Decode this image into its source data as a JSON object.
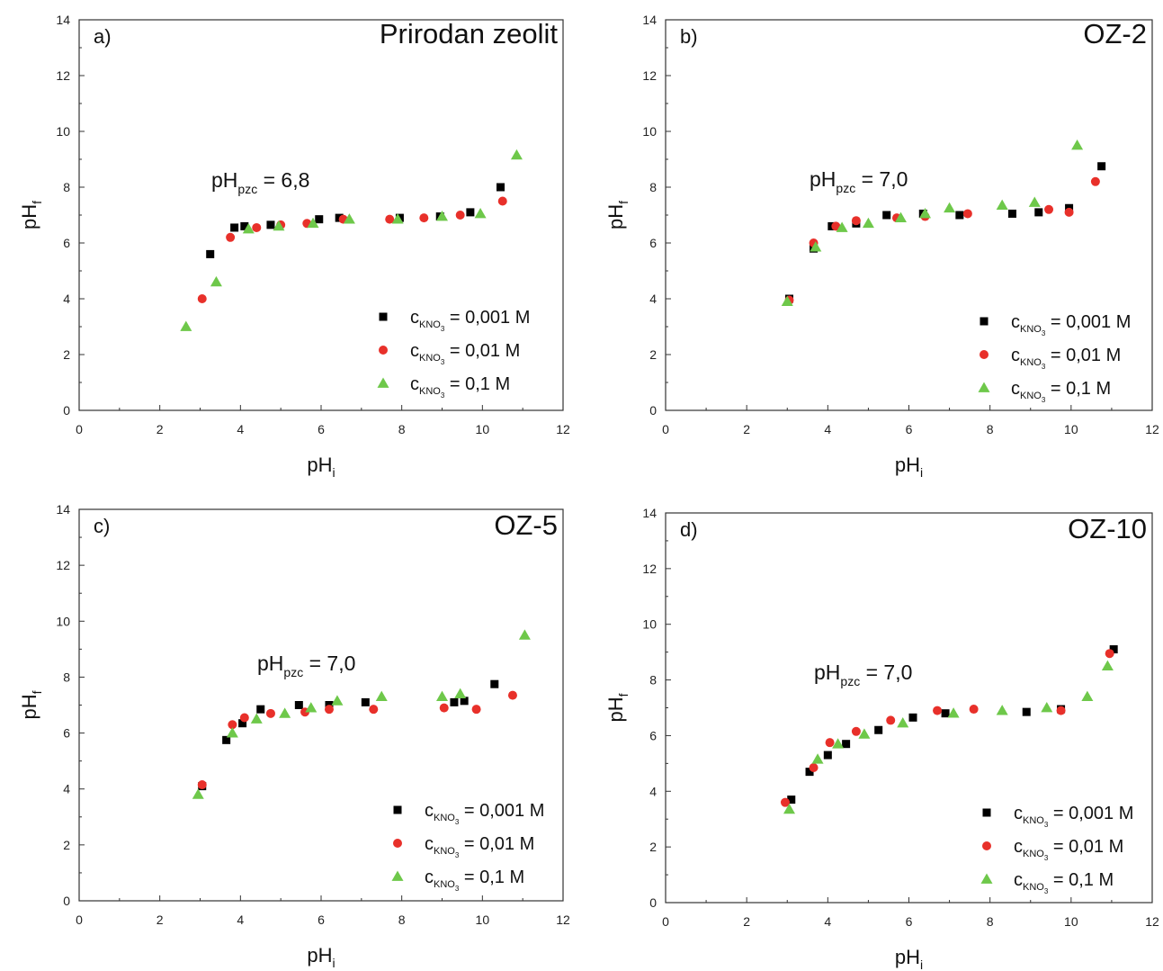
{
  "chart_data": [
    {
      "type": "scatter",
      "panel_label": "a)",
      "title": "Prirodan zeolit",
      "annotation": {
        "main": "pH",
        "sub": "pzc",
        "value": "= 6,8"
      },
      "xlabel": {
        "main": "pH",
        "sub": "i"
      },
      "ylabel": {
        "main": "pH",
        "sub": "f"
      },
      "xlim": [
        0,
        12
      ],
      "ylim": [
        0,
        14
      ],
      "xticks": [
        "0",
        "2",
        "4",
        "6",
        "8",
        "10",
        "12"
      ],
      "yticks": [
        "0",
        "2",
        "4",
        "6",
        "8",
        "10",
        "12",
        "14"
      ],
      "legend_position": "bottom-right",
      "series": [
        {
          "name": "c = 0,001 M",
          "legend": {
            "c": "c",
            "sub": "KNO",
            "sub2": "3",
            "value": "= 0,001 M"
          },
          "marker": "square",
          "color": "#000000",
          "points": [
            [
              3.25,
              5.6
            ],
            [
              3.85,
              6.55
            ],
            [
              4.1,
              6.6
            ],
            [
              4.75,
              6.65
            ],
            [
              5.95,
              6.85
            ],
            [
              6.45,
              6.9
            ],
            [
              7.95,
              6.9
            ],
            [
              8.95,
              6.95
            ],
            [
              9.7,
              7.1
            ],
            [
              10.45,
              8.0
            ]
          ]
        },
        {
          "name": "c = 0,01 M",
          "legend": {
            "c": "c",
            "sub": "KNO",
            "sub2": "3",
            "value": "= 0,01 M"
          },
          "marker": "circle",
          "color": "#e8302a",
          "points": [
            [
              3.05,
              4.0
            ],
            [
              3.75,
              6.2
            ],
            [
              4.4,
              6.55
            ],
            [
              5.0,
              6.65
            ],
            [
              5.65,
              6.7
            ],
            [
              6.55,
              6.85
            ],
            [
              7.7,
              6.85
            ],
            [
              8.55,
              6.9
            ],
            [
              9.45,
              7.0
            ],
            [
              10.5,
              7.5
            ]
          ]
        },
        {
          "name": "c = 0,1 M",
          "legend": {
            "c": "c",
            "sub": "KNO",
            "sub2": "3",
            "value": "= 0,1 M"
          },
          "marker": "triangle",
          "color": "#6ec84a",
          "points": [
            [
              2.65,
              3.0
            ],
            [
              3.4,
              4.6
            ],
            [
              4.2,
              6.5
            ],
            [
              4.95,
              6.6
            ],
            [
              5.8,
              6.7
            ],
            [
              6.7,
              6.85
            ],
            [
              7.9,
              6.85
            ],
            [
              9.0,
              6.95
            ],
            [
              9.95,
              7.05
            ],
            [
              10.85,
              9.15
            ]
          ]
        }
      ]
    },
    {
      "type": "scatter",
      "panel_label": "b)",
      "title": "OZ-2",
      "annotation": {
        "main": "pH",
        "sub": "pzc",
        "value": "= 7,0"
      },
      "xlabel": {
        "main": "pH",
        "sub": "i"
      },
      "ylabel": {
        "main": "pH",
        "sub": "f"
      },
      "xlim": [
        0,
        12
      ],
      "ylim": [
        0,
        14
      ],
      "xticks": [
        "0",
        "2",
        "4",
        "6",
        "8",
        "10",
        "12"
      ],
      "yticks": [
        "0",
        "2",
        "4",
        "6",
        "8",
        "10",
        "12",
        "14"
      ],
      "legend_position": "bottom-right",
      "series": [
        {
          "name": "c = 0,001 M",
          "legend": {
            "c": "c",
            "sub": "KNO",
            "sub2": "3",
            "value": "= 0,001 M"
          },
          "marker": "square",
          "color": "#000000",
          "points": [
            [
              3.05,
              4.0
            ],
            [
              3.65,
              5.8
            ],
            [
              4.1,
              6.6
            ],
            [
              4.7,
              6.7
            ],
            [
              5.45,
              7.0
            ],
            [
              6.35,
              7.05
            ],
            [
              7.25,
              7.0
            ],
            [
              8.55,
              7.05
            ],
            [
              9.2,
              7.1
            ],
            [
              9.95,
              7.25
            ],
            [
              10.75,
              8.75
            ]
          ]
        },
        {
          "name": "c = 0,01 M",
          "legend": {
            "c": "c",
            "sub": "KNO",
            "sub2": "3",
            "value": "= 0,01 M"
          },
          "marker": "circle",
          "color": "#e8302a",
          "points": [
            [
              3.05,
              3.95
            ],
            [
              3.65,
              6.0
            ],
            [
              4.2,
              6.6
            ],
            [
              4.7,
              6.8
            ],
            [
              5.7,
              6.9
            ],
            [
              6.4,
              6.95
            ],
            [
              7.45,
              7.05
            ],
            [
              9.45,
              7.2
            ],
            [
              9.95,
              7.1
            ],
            [
              10.6,
              8.2
            ]
          ]
        },
        {
          "name": "c = 0,1 M",
          "legend": {
            "c": "c",
            "sub": "KNO",
            "sub2": "3",
            "value": "= 0,1 M"
          },
          "marker": "triangle",
          "color": "#6ec84a",
          "points": [
            [
              3.0,
              3.9
            ],
            [
              3.7,
              5.85
            ],
            [
              4.35,
              6.55
            ],
            [
              5.0,
              6.7
            ],
            [
              5.8,
              6.9
            ],
            [
              6.4,
              7.05
            ],
            [
              7.0,
              7.25
            ],
            [
              8.3,
              7.35
            ],
            [
              9.1,
              7.45
            ],
            [
              10.15,
              9.5
            ]
          ]
        }
      ]
    },
    {
      "type": "scatter",
      "panel_label": "c)",
      "title": "OZ-5",
      "annotation": {
        "main": "pH",
        "sub": "pzc",
        "value": "= 7,0"
      },
      "xlabel": {
        "main": "pH",
        "sub": "i"
      },
      "ylabel": {
        "main": "pH",
        "sub": "f"
      },
      "xlim": [
        0,
        12
      ],
      "ylim": [
        0,
        14
      ],
      "xticks": [
        "0",
        "2",
        "4",
        "6",
        "8",
        "10",
        "12"
      ],
      "yticks": [
        "0",
        "2",
        "4",
        "6",
        "8",
        "10",
        "12",
        "14"
      ],
      "legend_position": "bottom-right",
      "series": [
        {
          "name": "c = 0,001 M",
          "legend": {
            "c": "c",
            "sub": "KNO",
            "sub2": "3",
            "value": "= 0,001 M"
          },
          "marker": "square",
          "color": "#000000",
          "points": [
            [
              3.05,
              4.1
            ],
            [
              3.65,
              5.75
            ],
            [
              4.05,
              6.35
            ],
            [
              4.5,
              6.85
            ],
            [
              5.45,
              7.0
            ],
            [
              6.2,
              7.0
            ],
            [
              7.1,
              7.1
            ],
            [
              9.3,
              7.1
            ],
            [
              9.55,
              7.15
            ],
            [
              10.3,
              7.75
            ]
          ]
        },
        {
          "name": "c = 0,01 M",
          "legend": {
            "c": "c",
            "sub": "KNO",
            "sub2": "3",
            "value": "= 0,01 M"
          },
          "marker": "circle",
          "color": "#e8302a",
          "points": [
            [
              3.05,
              4.15
            ],
            [
              3.8,
              6.3
            ],
            [
              4.1,
              6.55
            ],
            [
              4.75,
              6.7
            ],
            [
              5.6,
              6.75
            ],
            [
              6.2,
              6.85
            ],
            [
              7.3,
              6.85
            ],
            [
              9.05,
              6.9
            ],
            [
              9.85,
              6.85
            ],
            [
              10.75,
              7.35
            ]
          ]
        },
        {
          "name": "c = 0,1 M",
          "legend": {
            "c": "c",
            "sub": "KNO",
            "sub2": "3",
            "value": "= 0,1 M"
          },
          "marker": "triangle",
          "color": "#6ec84a",
          "points": [
            [
              2.95,
              3.8
            ],
            [
              3.8,
              6.0
            ],
            [
              4.4,
              6.5
            ],
            [
              5.1,
              6.7
            ],
            [
              5.75,
              6.9
            ],
            [
              6.4,
              7.15
            ],
            [
              7.5,
              7.3
            ],
            [
              9.0,
              7.3
            ],
            [
              9.45,
              7.4
            ],
            [
              11.05,
              9.5
            ]
          ]
        }
      ]
    },
    {
      "type": "scatter",
      "panel_label": "d)",
      "title": "OZ-10",
      "annotation": {
        "main": "pH",
        "sub": "pzc",
        "value": "= 7,0"
      },
      "xlabel": {
        "main": "pH",
        "sub": "i"
      },
      "ylabel": {
        "main": "pH",
        "sub": "f"
      },
      "xlim": [
        0,
        12
      ],
      "ylim": [
        0,
        14
      ],
      "xticks": [
        "0",
        "2",
        "4",
        "6",
        "8",
        "10",
        "12"
      ],
      "yticks": [
        "0",
        "2",
        "4",
        "6",
        "8",
        "10",
        "12",
        "14"
      ],
      "legend_position": "bottom-right",
      "series": [
        {
          "name": "c = 0,001 M",
          "legend": {
            "c": "c",
            "sub": "KNO",
            "sub2": "3",
            "value": "= 0,001 M"
          },
          "marker": "square",
          "color": "#000000",
          "points": [
            [
              3.1,
              3.7
            ],
            [
              3.55,
              4.7
            ],
            [
              4.0,
              5.3
            ],
            [
              4.45,
              5.7
            ],
            [
              5.25,
              6.2
            ],
            [
              6.1,
              6.65
            ],
            [
              6.9,
              6.8
            ],
            [
              8.9,
              6.85
            ],
            [
              9.75,
              6.95
            ],
            [
              11.05,
              9.1
            ]
          ]
        },
        {
          "name": "c = 0,01 M",
          "legend": {
            "c": "c",
            "sub": "KNO",
            "sub2": "3",
            "value": "= 0,01 M"
          },
          "marker": "circle",
          "color": "#e8302a",
          "points": [
            [
              2.95,
              3.6
            ],
            [
              3.65,
              4.85
            ],
            [
              4.05,
              5.75
            ],
            [
              4.7,
              6.15
            ],
            [
              5.55,
              6.55
            ],
            [
              6.7,
              6.9
            ],
            [
              7.6,
              6.95
            ],
            [
              9.75,
              6.9
            ],
            [
              10.95,
              8.95
            ]
          ]
        },
        {
          "name": "c = 0,1 M",
          "legend": {
            "c": "c",
            "sub": "KNO",
            "sub2": "3",
            "value": "= 0,1 M"
          },
          "marker": "triangle",
          "color": "#6ec84a",
          "points": [
            [
              3.05,
              3.35
            ],
            [
              3.75,
              5.15
            ],
            [
              4.25,
              5.7
            ],
            [
              4.9,
              6.05
            ],
            [
              5.85,
              6.45
            ],
            [
              7.1,
              6.8
            ],
            [
              8.3,
              6.9
            ],
            [
              9.4,
              7.0
            ],
            [
              10.4,
              7.4
            ],
            [
              10.9,
              8.5
            ]
          ]
        }
      ]
    }
  ]
}
